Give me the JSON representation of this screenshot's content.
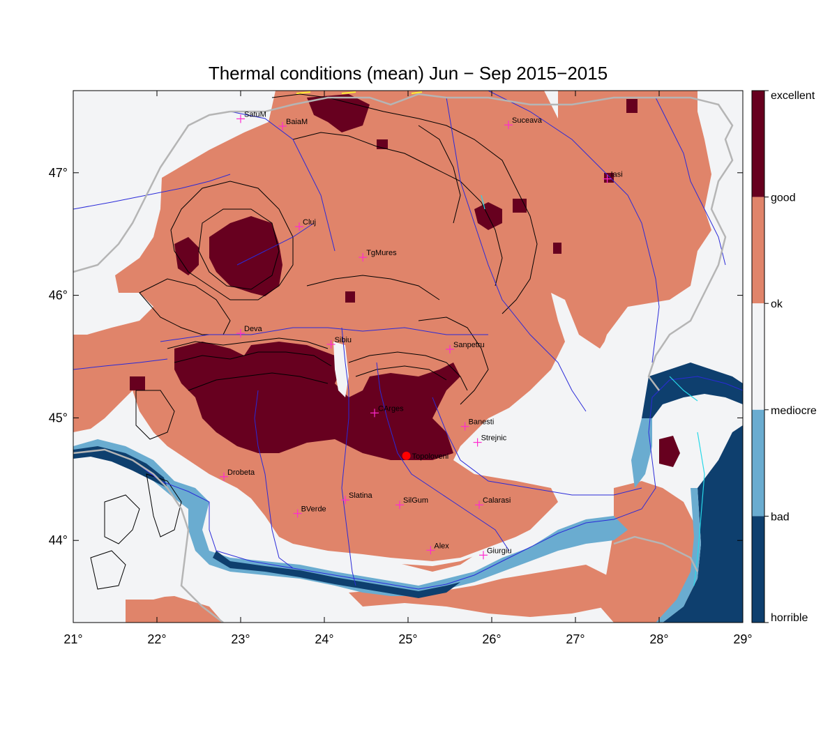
{
  "title": "Thermal conditions (mean) Jun − Sep  2015−2015",
  "map": {
    "lon_range": [
      21,
      29
    ],
    "lat_range": [
      43.33,
      47.67
    ],
    "x_ticks": [
      {
        "value": 21,
        "label": "21°"
      },
      {
        "value": 22,
        "label": "22°"
      },
      {
        "value": 23,
        "label": "23°"
      },
      {
        "value": 24,
        "label": "24°"
      },
      {
        "value": 25,
        "label": "25°"
      },
      {
        "value": 26,
        "label": "26°"
      },
      {
        "value": 27,
        "label": "27°"
      },
      {
        "value": 28,
        "label": "28°"
      },
      {
        "value": 29,
        "label": "29°"
      }
    ],
    "y_ticks": [
      {
        "value": 44,
        "label": "44°"
      },
      {
        "value": 45,
        "label": "45°"
      },
      {
        "value": 46,
        "label": "46°"
      },
      {
        "value": 47,
        "label": "47°"
      }
    ],
    "colors": {
      "excellent": "#67001f",
      "good": "#e0846a",
      "ok": "#f3f4f6",
      "mediocre": "#6aacd0",
      "bad": "#0e3f6e",
      "river": "#2a2ad8",
      "border": "#b5b5b5",
      "contour": "#000000",
      "marker": "#ff2ad0",
      "highlight": "#ff0000"
    },
    "cities": [
      {
        "name": "SatuM",
        "lon": 23.0,
        "lat": 47.44
      },
      {
        "name": "BaiaM",
        "lon": 23.5,
        "lat": 47.38
      },
      {
        "name": "Suceava",
        "lon": 26.2,
        "lat": 47.39
      },
      {
        "name": "Iasi",
        "lon": 27.38,
        "lat": 46.95
      },
      {
        "name": "Cluj",
        "lon": 23.7,
        "lat": 46.56
      },
      {
        "name": "TgMures",
        "lon": 24.46,
        "lat": 46.31
      },
      {
        "name": "Deva",
        "lon": 23.0,
        "lat": 45.69
      },
      {
        "name": "Sibiu",
        "lon": 24.08,
        "lat": 45.6
      },
      {
        "name": "Sanpetru",
        "lon": 25.5,
        "lat": 45.56
      },
      {
        "name": "CArges",
        "lon": 24.6,
        "lat": 45.04
      },
      {
        "name": "Banesti",
        "lon": 25.68,
        "lat": 44.93
      },
      {
        "name": "Strejnic",
        "lon": 25.83,
        "lat": 44.8
      },
      {
        "name": "Drobeta",
        "lon": 22.8,
        "lat": 44.52
      },
      {
        "name": "Slatina",
        "lon": 24.25,
        "lat": 44.33
      },
      {
        "name": "SilGum",
        "lon": 24.9,
        "lat": 44.29
      },
      {
        "name": "Calarasi",
        "lon": 25.85,
        "lat": 44.29
      },
      {
        "name": "BVerde",
        "lon": 23.68,
        "lat": 44.22
      },
      {
        "name": "Alex",
        "lon": 25.27,
        "lat": 43.92
      },
      {
        "name": "Giurgiu",
        "lon": 25.9,
        "lat": 43.88
      }
    ],
    "highlight_station": {
      "name": "Topoloveni",
      "lon": 24.98,
      "lat": 44.69
    }
  },
  "colorbar": {
    "labels": [
      "excellent",
      "good",
      "ok",
      "mediocre",
      "bad",
      "horrible"
    ],
    "bands": [
      {
        "from": "excellent",
        "to": "good",
        "color": "#67001f"
      },
      {
        "from": "good",
        "to": "ok",
        "color": "#e0846a"
      },
      {
        "from": "ok",
        "to": "mediocre",
        "color": "#f3f4f6"
      },
      {
        "from": "mediocre",
        "to": "bad",
        "color": "#6aacd0"
      },
      {
        "from": "bad",
        "to": "horrible",
        "color": "#0e3f6e"
      }
    ]
  }
}
